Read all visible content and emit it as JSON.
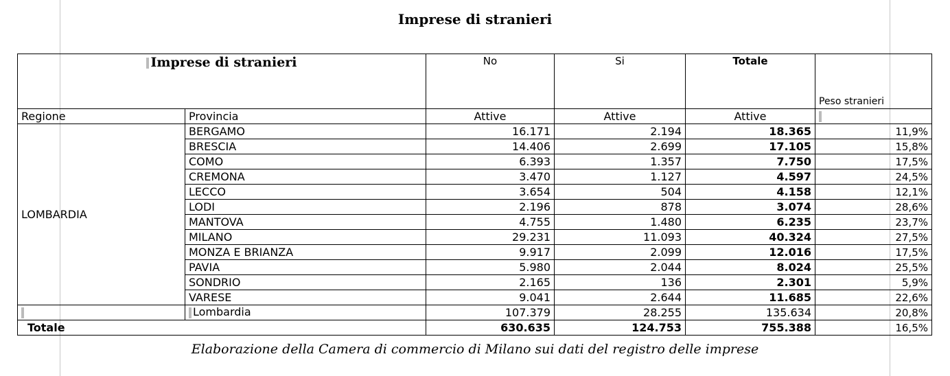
{
  "page_title": "Imprese di stranieri",
  "caption": "Elaborazione della Camera di commercio di Milano sui dati del registro delle imprese",
  "table": {
    "header_title": "Imprese di stranieri",
    "col_no": "No",
    "col_si": "Si",
    "col_totale": "Totale",
    "col_peso": "Peso stranieri",
    "sub_regione": "Regione",
    "sub_provincia": "Provincia",
    "sub_attive_no": "Attive",
    "sub_attive_si": "Attive",
    "sub_attive_tot": "Attive",
    "region": "LOMBARDIA",
    "rows": [
      {
        "provincia": "BERGAMO",
        "no": "16.171",
        "si": "2.194",
        "totale": "18.365",
        "peso": "11,9%"
      },
      {
        "provincia": "BRESCIA",
        "no": "14.406",
        "si": "2.699",
        "totale": "17.105",
        "peso": "15,8%"
      },
      {
        "provincia": "COMO",
        "no": "6.393",
        "si": "1.357",
        "totale": "7.750",
        "peso": "17,5%"
      },
      {
        "provincia": "CREMONA",
        "no": "3.470",
        "si": "1.127",
        "totale": "4.597",
        "peso": "24,5%"
      },
      {
        "provincia": "LECCO",
        "no": "3.654",
        "si": "504",
        "totale": "4.158",
        "peso": "12,1%"
      },
      {
        "provincia": "LODI",
        "no": "2.196",
        "si": "878",
        "totale": "3.074",
        "peso": "28,6%"
      },
      {
        "provincia": "MANTOVA",
        "no": "4.755",
        "si": "1.480",
        "totale": "6.235",
        "peso": "23,7%"
      },
      {
        "provincia": "MILANO",
        "no": "29.231",
        "si": "11.093",
        "totale": "40.324",
        "peso": "27,5%"
      },
      {
        "provincia": "MONZA E BRIANZA",
        "no": "9.917",
        "si": "2.099",
        "totale": "12.016",
        "peso": "17,5%"
      },
      {
        "provincia": "PAVIA",
        "no": "5.980",
        "si": "2.044",
        "totale": "8.024",
        "peso": "25,5%"
      },
      {
        "provincia": "SONDRIO",
        "no": "2.165",
        "si": "136",
        "totale": "2.301",
        "peso": "5,9%"
      },
      {
        "provincia": "VARESE",
        "no": "9.041",
        "si": "2.644",
        "totale": "11.685",
        "peso": "22,6%"
      }
    ],
    "subtotal": {
      "label": "Lombardia",
      "no": "107.379",
      "si": "28.255",
      "totale": "135.634",
      "peso": "20,8%"
    },
    "total": {
      "label": "Totale",
      "no": "630.635",
      "si": "124.753",
      "totale": "755.388",
      "peso": "16,5%"
    }
  }
}
